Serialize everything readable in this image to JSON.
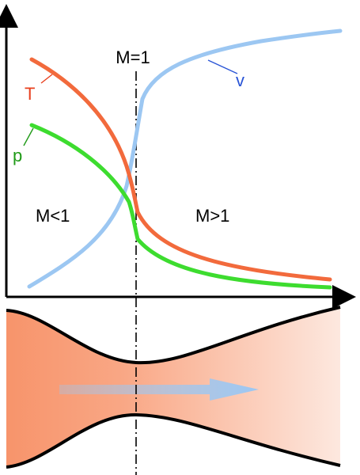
{
  "labels": {
    "mach_one": "M=1",
    "subsonic": "M<1",
    "supersonic": "M>1",
    "temperature": "T",
    "pressure": "p",
    "velocity": "v"
  },
  "colors": {
    "temperature": "#f26a3c",
    "pressure": "#3ddc2f",
    "velocity": "#9cc7f2",
    "velocity_label": "#2a55d6",
    "temperature_label": "#e8401e",
    "pressure_label": "#1f9a17",
    "axes": "#000000",
    "nozzle_gradient_start": "#f7946b",
    "nozzle_gradient_end": "#fde8df",
    "flow_arrow": "#9cc7f2"
  },
  "nozzle": {
    "flow_direction": "left-to-right"
  }
}
